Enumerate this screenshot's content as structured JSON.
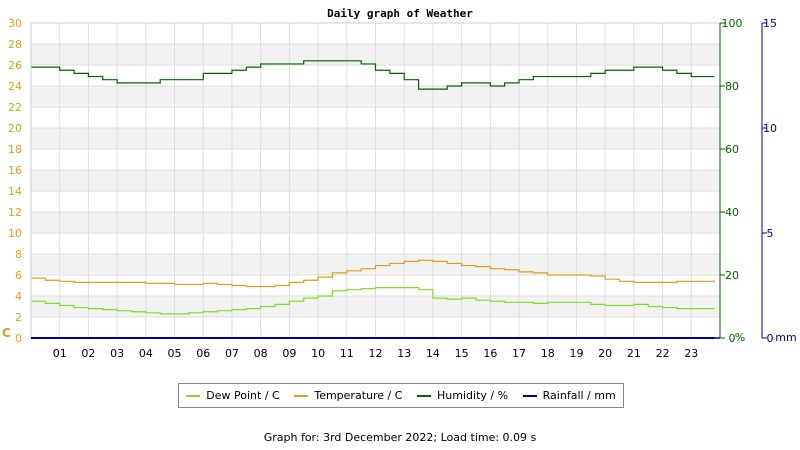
{
  "title": "Daily graph of Weather",
  "footer": "Graph for: 3rd December 2022; Load time: 0.09 s",
  "colors": {
    "dew_point": "#80e020",
    "temperature": "#e0a010",
    "humidity": "#006600",
    "rainfall": "#000099",
    "left_axis": "#e0a010",
    "humidity_axis": "#006600",
    "rain_axis": "#000099"
  },
  "legend": [
    {
      "label": "Dew Point / C",
      "color": "#80e020"
    },
    {
      "label": "Temperature / C",
      "color": "#e0a010"
    },
    {
      "label": "Humidity / %",
      "color": "#006600"
    },
    {
      "label": "Rainfall / mm",
      "color": "#000099"
    }
  ],
  "chart_data": {
    "type": "line",
    "title": "Daily graph of Weather",
    "x_label": "",
    "x_ticks": [
      "01",
      "02",
      "03",
      "04",
      "05",
      "06",
      "07",
      "08",
      "09",
      "10",
      "11",
      "12",
      "13",
      "14",
      "15",
      "16",
      "17",
      "18",
      "19",
      "20",
      "21",
      "22",
      "23"
    ],
    "x_range": [
      0,
      24
    ],
    "axes": {
      "left": {
        "unit": "C",
        "range": [
          0,
          30
        ],
        "ticks": [
          0,
          2,
          4,
          6,
          8,
          10,
          12,
          14,
          16,
          18,
          20,
          22,
          24,
          26,
          28,
          30
        ]
      },
      "humidity": {
        "unit": "%",
        "range": [
          0,
          100
        ],
        "ticks": [
          0,
          20,
          40,
          60,
          80,
          100
        ]
      },
      "rain": {
        "unit": "mm",
        "range": [
          0,
          15
        ],
        "ticks": [
          0,
          5,
          10,
          15
        ]
      }
    },
    "grid": true,
    "series": [
      {
        "name": "Dew Point / C",
        "axis": "left",
        "x": [
          0,
          0.5,
          1,
          1.5,
          2,
          2.5,
          3,
          3.5,
          4,
          4.5,
          5,
          5.5,
          6,
          6.5,
          7,
          7.5,
          8,
          8.5,
          9,
          9.5,
          10,
          10.5,
          11,
          11.5,
          12,
          12.5,
          13,
          13.5,
          14,
          14.5,
          15,
          15.5,
          16,
          16.5,
          17,
          17.5,
          18,
          18.5,
          19,
          19.5,
          20,
          20.5,
          21,
          21.5,
          22,
          22.5,
          23,
          23.8
        ],
        "y": [
          3.5,
          3.3,
          3.1,
          2.9,
          2.8,
          2.7,
          2.6,
          2.5,
          2.4,
          2.3,
          2.3,
          2.4,
          2.5,
          2.6,
          2.7,
          2.8,
          3.0,
          3.2,
          3.5,
          3.8,
          4.0,
          4.5,
          4.6,
          4.7,
          4.8,
          4.8,
          4.8,
          4.6,
          3.8,
          3.7,
          3.8,
          3.6,
          3.5,
          3.4,
          3.4,
          3.3,
          3.4,
          3.4,
          3.4,
          3.2,
          3.1,
          3.1,
          3.2,
          3.0,
          2.9,
          2.8,
          2.8,
          2.8
        ]
      },
      {
        "name": "Temperature / C",
        "axis": "left",
        "x": [
          0,
          0.5,
          1,
          1.5,
          2,
          2.5,
          3,
          3.5,
          4,
          4.5,
          5,
          5.5,
          6,
          6.5,
          7,
          7.5,
          8,
          8.5,
          9,
          9.5,
          10,
          10.5,
          11,
          11.5,
          12,
          12.5,
          13,
          13.5,
          14,
          14.5,
          15,
          15.5,
          16,
          16.5,
          17,
          17.5,
          18,
          18.5,
          19,
          19.5,
          20,
          20.5,
          21,
          21.5,
          22,
          22.5,
          23,
          23.8
        ],
        "y": [
          5.7,
          5.5,
          5.4,
          5.3,
          5.3,
          5.3,
          5.3,
          5.3,
          5.2,
          5.2,
          5.1,
          5.1,
          5.2,
          5.1,
          5.0,
          4.9,
          4.9,
          5.0,
          5.3,
          5.5,
          5.8,
          6.2,
          6.4,
          6.6,
          6.9,
          7.1,
          7.3,
          7.4,
          7.3,
          7.1,
          6.9,
          6.8,
          6.6,
          6.5,
          6.3,
          6.2,
          6.0,
          6.0,
          6.0,
          5.9,
          5.6,
          5.4,
          5.3,
          5.3,
          5.3,
          5.4,
          5.4,
          5.5
        ]
      },
      {
        "name": "Humidity / %",
        "axis": "humidity",
        "x": [
          0,
          0.5,
          1,
          1.5,
          2,
          2.5,
          3,
          3.5,
          4,
          4.5,
          5,
          5.5,
          6,
          6.5,
          7,
          7.5,
          8,
          8.5,
          9,
          9.5,
          10,
          10.5,
          11,
          11.5,
          12,
          12.5,
          13,
          13.5,
          14,
          14.5,
          15,
          15.5,
          16,
          16.5,
          17,
          17.5,
          18,
          18.5,
          19,
          19.5,
          20,
          20.5,
          21,
          21.5,
          22,
          22.5,
          23,
          23.8
        ],
        "y": [
          86,
          86,
          85,
          84,
          83,
          82,
          81,
          81,
          81,
          82,
          82,
          82,
          84,
          84,
          85,
          86,
          87,
          87,
          87,
          88,
          88,
          88,
          88,
          87,
          85,
          84,
          82,
          79,
          79,
          80,
          81,
          81,
          80,
          81,
          82,
          83,
          83,
          83,
          83,
          84,
          85,
          85,
          86,
          86,
          85,
          84,
          83,
          83
        ]
      },
      {
        "name": "Rainfall / mm",
        "axis": "rain",
        "x": [
          0,
          23.8
        ],
        "y": [
          0,
          0
        ]
      }
    ]
  }
}
